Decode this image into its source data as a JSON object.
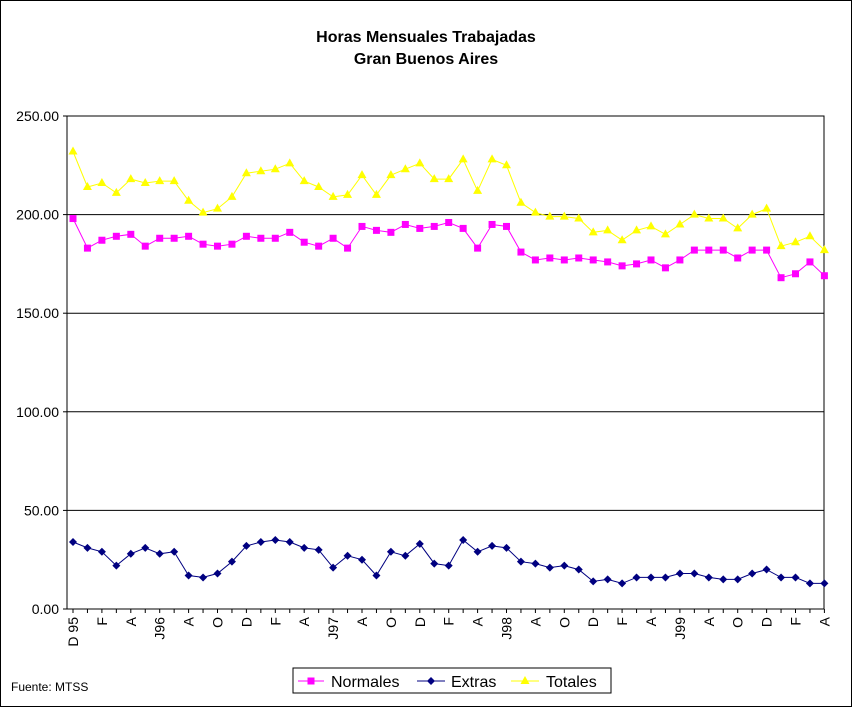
{
  "chart_data": {
    "type": "line",
    "title": "Horas Mensuales Trabajadas",
    "subtitle": "Gran Buenos Aires",
    "source": "Fuente: MTSS",
    "ylim": [
      0,
      250
    ],
    "y_ticks": [
      "0.00",
      "50.00",
      "100.00",
      "150.00",
      "200.00",
      "250.00"
    ],
    "y_tick_values": [
      0,
      50,
      100,
      150,
      200,
      250
    ],
    "grid": true,
    "legend_position": "bottom",
    "x_labels": [
      "D 95",
      "F",
      "A",
      "J96",
      "A",
      "O",
      "D",
      "F",
      "A",
      "J97",
      "A",
      "O",
      "D",
      "F",
      "A",
      "J98",
      "A",
      "O",
      "D",
      "F",
      "A",
      "J99",
      "A",
      "O",
      "D",
      "F",
      "A"
    ],
    "series": [
      {
        "name": "Normales",
        "color": "#ff00ff",
        "marker": "square",
        "values": [
          198,
          183,
          187,
          189,
          190,
          184,
          188,
          188,
          189,
          185,
          184,
          185,
          189,
          188,
          188,
          191,
          186,
          184,
          188,
          183,
          194,
          192,
          191,
          195,
          193,
          194,
          196,
          193,
          183,
          195,
          194,
          181,
          177,
          178,
          177,
          178,
          177,
          176,
          174,
          175,
          177,
          173,
          177,
          182,
          182,
          182,
          178,
          182,
          182,
          168,
          170,
          176,
          169
        ]
      },
      {
        "name": "Extras",
        "color": "#000080",
        "marker": "diamond",
        "values": [
          34,
          31,
          29,
          22,
          28,
          31,
          28,
          29,
          17,
          16,
          18,
          24,
          32,
          34,
          35,
          34,
          31,
          30,
          21,
          27,
          25,
          17,
          29,
          27,
          33,
          23,
          22,
          35,
          29,
          32,
          31,
          24,
          23,
          21,
          22,
          20,
          14,
          15,
          13,
          16,
          16,
          16,
          18,
          18,
          16,
          15,
          15,
          18,
          20,
          16,
          16,
          13,
          13
        ]
      },
      {
        "name": "Totales",
        "color": "#ffff00",
        "marker": "triangle",
        "values": [
          232,
          214,
          216,
          211,
          218,
          216,
          217,
          217,
          207,
          201,
          203,
          209,
          221,
          222,
          223,
          226,
          217,
          214,
          209,
          210,
          220,
          210,
          220,
          223,
          226,
          218,
          218,
          228,
          212,
          228,
          225,
          206,
          201,
          199,
          199,
          198,
          191,
          192,
          187,
          192,
          194,
          190,
          195,
          200,
          198,
          198,
          193,
          200,
          203,
          184,
          186,
          189,
          182
        ]
      }
    ]
  }
}
